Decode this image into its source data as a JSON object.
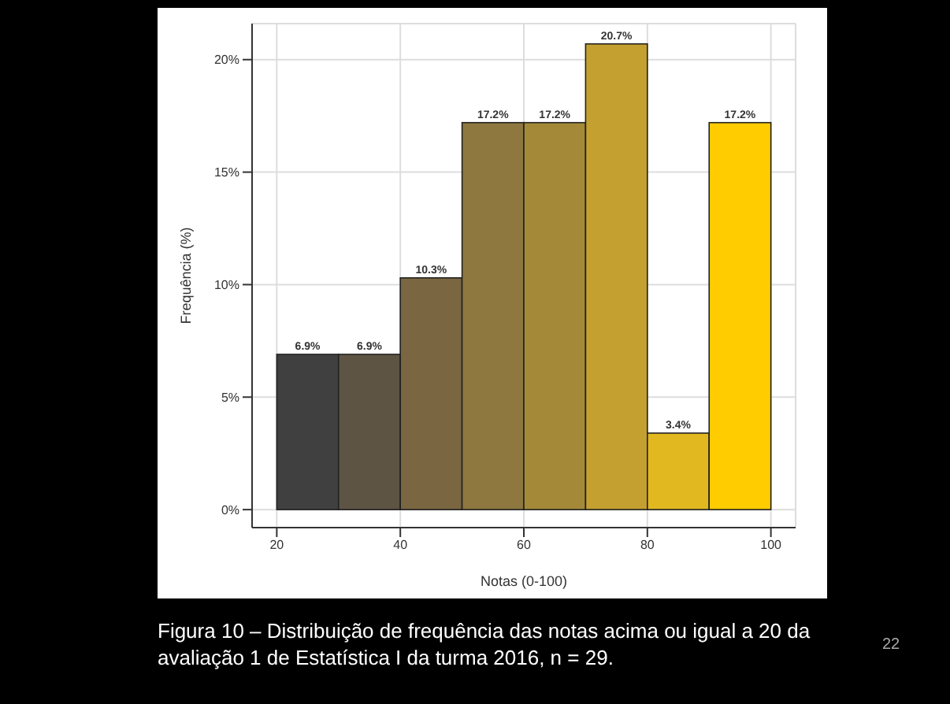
{
  "chart_data": {
    "type": "histogram",
    "xlabel": "Notas (0-100)",
    "ylabel": "Frequência (%)",
    "bins": [
      20,
      30,
      40,
      50,
      60,
      70,
      80,
      90,
      100
    ],
    "values": [
      6.9,
      6.9,
      10.3,
      17.2,
      17.2,
      20.7,
      3.4,
      17.2
    ],
    "colors": [
      "#404040",
      "#5e5444",
      "#7a6640",
      "#8e7840",
      "#a48a38",
      "#c4a030",
      "#e2b820",
      "#ffcc00"
    ],
    "value_labels": [
      "6.9%",
      "6.9%",
      "10.3%",
      "17.2%",
      "17.2%",
      "20.7%",
      "3.4%",
      "17.2%"
    ],
    "xlim": [
      16,
      104
    ],
    "xticks": [
      20,
      40,
      60,
      80,
      100
    ],
    "ylim": [
      -0.8,
      21.6
    ],
    "yticks": [
      {
        "value": 0,
        "label": "0%"
      },
      {
        "value": 5,
        "label": "5%"
      },
      {
        "value": 10,
        "label": "10%"
      },
      {
        "value": 15,
        "label": "15%"
      },
      {
        "value": 20,
        "label": "20%"
      }
    ],
    "grid": true,
    "annotations": [
      "Figura 10 – Distribuição de frequência das notas acima ou igual a 20 da avaliação 1 de Estatística I da turma 2016, n = 29.",
      "22"
    ]
  }
}
